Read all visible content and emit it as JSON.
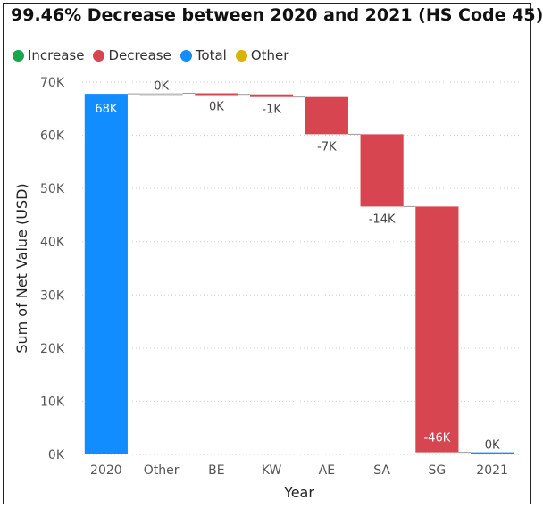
{
  "chart_data": {
    "type": "waterfall",
    "title": "99.46% Decrease between 2020 and 2021 (HS Code 45)",
    "xlabel": "Year",
    "ylabel": "Sum of Net Value (USD)",
    "ylim": [
      0,
      70000
    ],
    "yticks": [
      0,
      10000,
      20000,
      30000,
      40000,
      50000,
      60000,
      70000
    ],
    "ytick_labels": [
      "0K",
      "10K",
      "20K",
      "30K",
      "40K",
      "50K",
      "60K",
      "70K"
    ],
    "grid": true,
    "legend_position": "top-left",
    "legend": [
      {
        "label": "Increase",
        "color": "#1aa64a"
      },
      {
        "label": "Decrease",
        "color": "#d64550"
      },
      {
        "label": "Total",
        "color": "#118dff"
      },
      {
        "label": "Other",
        "color": "#d9b300"
      }
    ],
    "categories": [
      "2020",
      "Other",
      "BE",
      "KW",
      "AE",
      "SA",
      "SG",
      "2021"
    ],
    "bars": [
      {
        "category": "2020",
        "kind": "Total",
        "start": 0,
        "end": 67800,
        "label": "68K"
      },
      {
        "category": "Other",
        "kind": "Other",
        "start": 67800,
        "end": 67900,
        "label": "0K"
      },
      {
        "category": "BE",
        "kind": "Decrease",
        "start": 67900,
        "end": 67700,
        "label": "0K"
      },
      {
        "category": "KW",
        "kind": "Decrease",
        "start": 67700,
        "end": 67200,
        "label": "-1K"
      },
      {
        "category": "AE",
        "kind": "Decrease",
        "start": 67200,
        "end": 60200,
        "label": "-7K"
      },
      {
        "category": "SA",
        "kind": "Decrease",
        "start": 60200,
        "end": 46600,
        "label": "-14K"
      },
      {
        "category": "SG",
        "kind": "Decrease",
        "start": 46600,
        "end": 400,
        "label": "-46K"
      },
      {
        "category": "2021",
        "kind": "Total",
        "start": 0,
        "end": 400,
        "label": "0K"
      }
    ]
  }
}
